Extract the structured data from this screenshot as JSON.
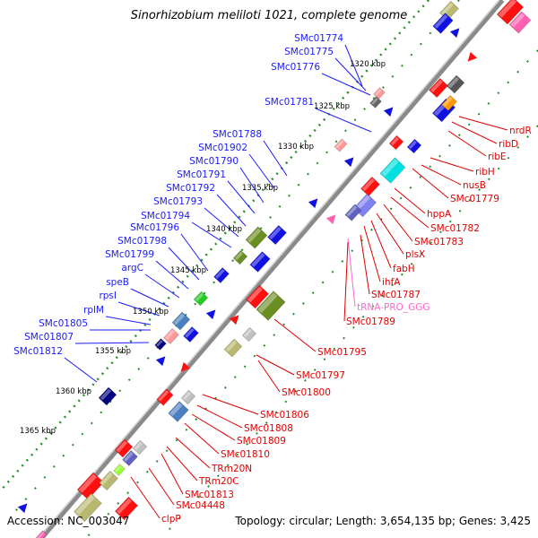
{
  "title": "Sinorhizobium meliloti 1021, complete genome",
  "footer": {
    "accession": "Accession: NC_003047",
    "summary": "Topology: circular; Length: 3,654,135 bp; Genes: 3,425"
  },
  "colors": {
    "left_label": "#1a1aff",
    "right_label": "#e00000",
    "rna_label": "#ff66cc",
    "backbone": "#888888",
    "tick_dot": "#2e8b2e"
  },
  "ticks": [
    "1320 kbp",
    "1325 kbp",
    "1330 kbp",
    "1335 kbp",
    "1340 kbp",
    "1345 kbp",
    "1350 kbp",
    "1355 kbp",
    "1360 kbp",
    "1365 kbp"
  ],
  "left_genes": [
    "SMc01774",
    "SMc01775",
    "SMc01776",
    "SMc01781",
    "SMc01788",
    "SMc01902",
    "SMc01790",
    "SMc01791",
    "SMc01792",
    "SMc01793",
    "SMc01794",
    "SMc01796",
    "SMc01798",
    "SMc01799",
    "argC",
    "speB",
    "rpsI",
    "rplM",
    "SMc01805",
    "SMc01807",
    "SMc01812"
  ],
  "right_genes_upper": [
    "nrdR",
    "ribD",
    "ribE",
    "ribH",
    "nusB",
    "SMc01779",
    "hppA",
    "SMc01782",
    "SMc01783",
    "plsX",
    "fabH",
    "ihfA",
    "SMc01787",
    "tRNA-PRO_GGG",
    "SMc01789",
    "SMc01795"
  ],
  "right_genes_lower": [
    "SMc01797",
    "SMc01800",
    "SMc01806",
    "SMc01808",
    "SMc01809",
    "SMc01810",
    "TRm20N",
    "TRm20C",
    "SMc01813",
    "SMc04448",
    "clpP"
  ]
}
